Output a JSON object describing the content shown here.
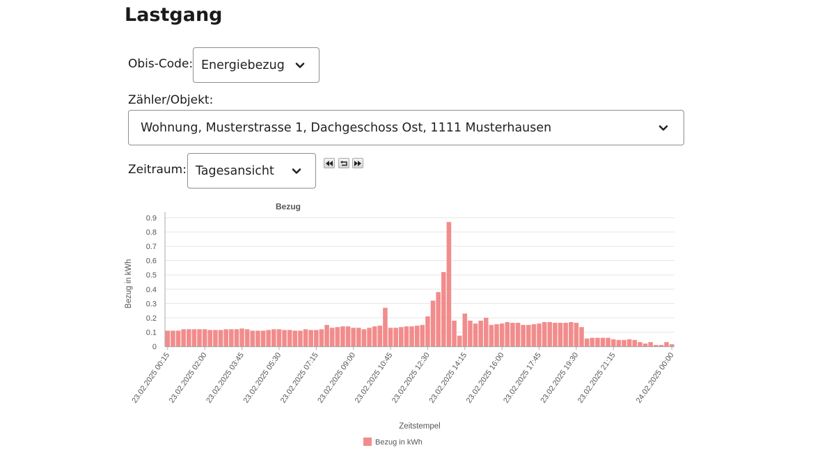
{
  "page": {
    "title": "Lastgang"
  },
  "obis": {
    "label": "Obis-Code:",
    "value": "Energiebezug"
  },
  "meter": {
    "label": "Zähler/Objekt:",
    "value": "Wohnung, Musterstrasse 1, Dachgeschoss Ost, 1111 Musterhausen"
  },
  "period": {
    "label": "Zeitraum:",
    "value": "Tagesansicht"
  },
  "nav": {
    "prev_icon": "rewind-icon",
    "reset_icon": "return-icon",
    "next_icon": "fast-forward-icon"
  },
  "colors": {
    "bar": "#f28c8c",
    "grid": "#e6e6e6",
    "axis_text": "#555555"
  },
  "chart_data": {
    "type": "bar",
    "title": "Bezug",
    "xlabel": "Zeitstempel",
    "ylabel": "Bezug in kWh",
    "ylim": [
      0,
      0.9
    ],
    "yticks": [
      0,
      0.1,
      0.2,
      0.3,
      0.4,
      0.5,
      0.6,
      0.7,
      0.8,
      0.9
    ],
    "grid": true,
    "legend_position": "bottom",
    "tick_labels": [
      {
        "index": 0,
        "label": "23.02.2025 00:15"
      },
      {
        "index": 7,
        "label": "23.02.2025 02:00"
      },
      {
        "index": 14,
        "label": "23.02.2025 03:45"
      },
      {
        "index": 21,
        "label": "23.02.2025 05:30"
      },
      {
        "index": 28,
        "label": "23.02.2025 07:15"
      },
      {
        "index": 35,
        "label": "23.02.2025 09:00"
      },
      {
        "index": 42,
        "label": "23.02.2025 10:45"
      },
      {
        "index": 49,
        "label": "23.02.2025 12:30"
      },
      {
        "index": 56,
        "label": "23.02.2025 14:15"
      },
      {
        "index": 63,
        "label": "23.02.2025 16:00"
      },
      {
        "index": 70,
        "label": "23.02.2025 17:45"
      },
      {
        "index": 77,
        "label": "23.02.2025 19:30"
      },
      {
        "index": 84,
        "label": "23.02.2025 21:15"
      },
      {
        "index": 95,
        "label": "24.02.2025 00:00"
      }
    ],
    "series": [
      {
        "name": "Bezug in kWh",
        "values": [
          0.11,
          0.11,
          0.11,
          0.12,
          0.12,
          0.12,
          0.12,
          0.12,
          0.115,
          0.115,
          0.115,
          0.12,
          0.12,
          0.12,
          0.125,
          0.12,
          0.11,
          0.11,
          0.11,
          0.115,
          0.12,
          0.12,
          0.115,
          0.115,
          0.11,
          0.11,
          0.12,
          0.115,
          0.115,
          0.12,
          0.15,
          0.13,
          0.135,
          0.14,
          0.14,
          0.13,
          0.13,
          0.12,
          0.13,
          0.14,
          0.145,
          0.27,
          0.13,
          0.13,
          0.135,
          0.14,
          0.14,
          0.145,
          0.15,
          0.21,
          0.32,
          0.38,
          0.52,
          0.87,
          0.18,
          0.075,
          0.23,
          0.18,
          0.16,
          0.18,
          0.2,
          0.15,
          0.155,
          0.16,
          0.17,
          0.165,
          0.165,
          0.15,
          0.15,
          0.155,
          0.16,
          0.17,
          0.17,
          0.165,
          0.165,
          0.165,
          0.17,
          0.165,
          0.135,
          0.055,
          0.06,
          0.06,
          0.06,
          0.06,
          0.05,
          0.045,
          0.045,
          0.05,
          0.045,
          0.03,
          0.02,
          0.03,
          0.01,
          0.01,
          0.03,
          0.015
        ]
      }
    ]
  }
}
